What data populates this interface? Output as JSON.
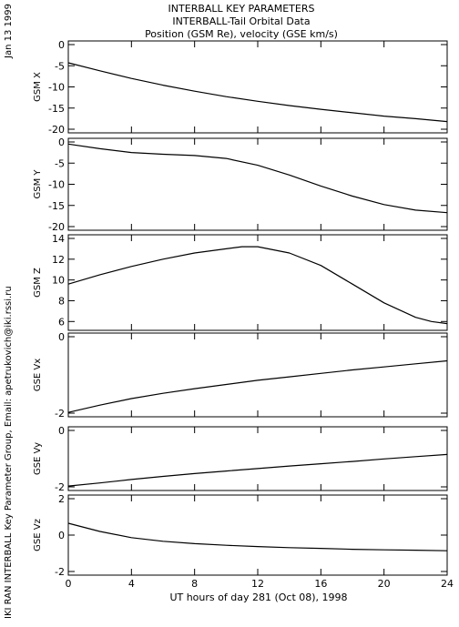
{
  "header": {
    "date": "Jan 13 1999",
    "side_note": "IKI RAN INTERBALL Key Parameter Group, Email: apetrukovich@iki.rssi.ru"
  },
  "chart_data": {
    "type": "line",
    "title": "INTERBALL KEY PARAMETERS",
    "subtitle": "INTERBALL-Tail Orbital Data",
    "subtitle2": "Position (GSM Re), velocity (GSE km/s)",
    "xlabel": "UT hours of day 281 (Oct 08), 1998",
    "xlim": [
      0,
      24
    ],
    "xticks": [
      "0",
      "4",
      "8",
      "12",
      "16",
      "20",
      "24"
    ],
    "grid": false,
    "panels": [
      {
        "ylabel": "GSM X",
        "ylim": [
          -20,
          0
        ],
        "yticks": [
          "0",
          "-5",
          "-10",
          "-15",
          "-20"
        ],
        "x": [
          0,
          2,
          4,
          6,
          8,
          10,
          12,
          14,
          16,
          18,
          20,
          22,
          24
        ],
        "y": [
          -4.3,
          -6.2,
          -8.0,
          -9.6,
          -11.0,
          -12.3,
          -13.4,
          -14.4,
          -15.3,
          -16.1,
          -16.9,
          -17.5,
          -18.2
        ]
      },
      {
        "ylabel": "GSM Y",
        "ylim": [
          -20,
          0
        ],
        "yticks": [
          "0",
          "-5",
          "-10",
          "-15",
          "-20"
        ],
        "x": [
          0,
          2,
          4,
          6,
          8,
          10,
          12,
          14,
          16,
          18,
          20,
          22,
          24
        ],
        "y": [
          -0.5,
          -1.6,
          -2.5,
          -2.9,
          -3.2,
          -3.9,
          -5.5,
          -7.8,
          -10.4,
          -12.8,
          -14.8,
          -16.1,
          -16.7
        ]
      },
      {
        "ylabel": "GSM Z",
        "ylim": [
          5.5,
          14
        ],
        "yticks": [
          "14",
          "12",
          "10",
          "8",
          "6"
        ],
        "x": [
          0,
          2,
          4,
          6,
          8,
          10,
          11,
          12,
          14,
          16,
          18,
          20,
          22,
          23,
          24
        ],
        "y": [
          9.6,
          10.5,
          11.3,
          12.0,
          12.6,
          13.0,
          13.2,
          13.2,
          12.6,
          11.4,
          9.6,
          7.8,
          6.4,
          6.0,
          5.8
        ]
      },
      {
        "ylabel": "GSE Vx",
        "ylim": [
          -2,
          0
        ],
        "yticks": [
          "0",
          "-2"
        ],
        "x": [
          0,
          2,
          4,
          6,
          8,
          10,
          12,
          14,
          16,
          18,
          20,
          22,
          24
        ],
        "y": [
          -1.98,
          -1.79,
          -1.62,
          -1.48,
          -1.36,
          -1.25,
          -1.14,
          -1.05,
          -0.96,
          -0.87,
          -0.79,
          -0.71,
          -0.63
        ]
      },
      {
        "ylabel": "GSE Vy",
        "ylim": [
          -2,
          0
        ],
        "yticks": [
          "0",
          "-2"
        ],
        "x": [
          0,
          2,
          4,
          6,
          8,
          10,
          12,
          14,
          16,
          18,
          20,
          22,
          24
        ],
        "y": [
          -1.97,
          -1.86,
          -1.74,
          -1.63,
          -1.53,
          -1.44,
          -1.35,
          -1.26,
          -1.18,
          -1.1,
          -1.01,
          -0.93,
          -0.85
        ]
      },
      {
        "ylabel": "GSE Vz",
        "ylim": [
          -2,
          2
        ],
        "yticks": [
          "2",
          "0",
          "-2"
        ],
        "x": [
          0,
          2,
          4,
          6,
          8,
          10,
          12,
          14,
          16,
          18,
          20,
          22,
          24
        ],
        "y": [
          0.65,
          0.2,
          -0.14,
          -0.34,
          -0.47,
          -0.56,
          -0.63,
          -0.69,
          -0.73,
          -0.78,
          -0.81,
          -0.83,
          -0.86
        ]
      }
    ]
  }
}
